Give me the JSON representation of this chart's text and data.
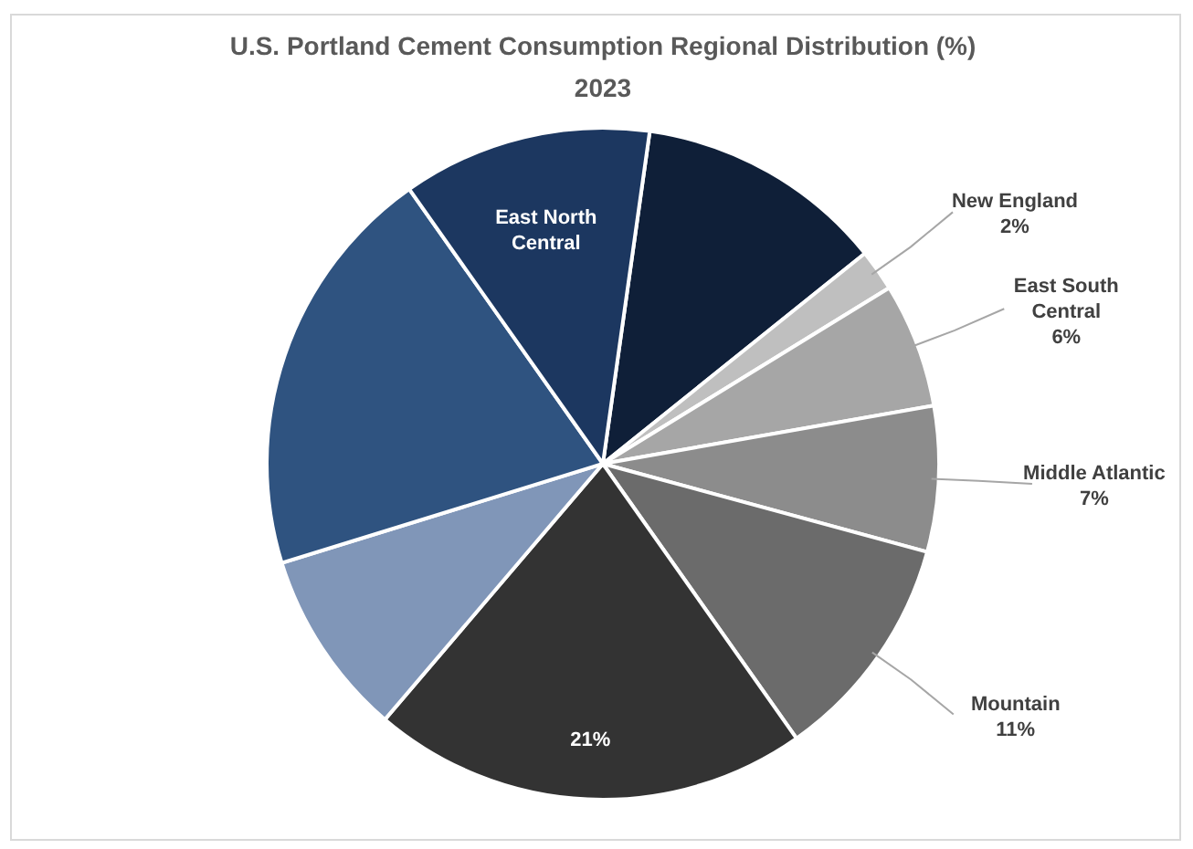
{
  "chart_data": {
    "type": "pie",
    "title": "U.S. Portland Cement Consumption Regional Distribution (%)",
    "subtitle": "2023",
    "categories": [
      null,
      "New England",
      "East South Central",
      "Middle Atlantic",
      "Mountain",
      null,
      null,
      null,
      "East North Central"
    ],
    "values": [
      12,
      2,
      6,
      7,
      11,
      21,
      9,
      20,
      12
    ],
    "value_labels": [
      null,
      "2%",
      "6%",
      "7%",
      "11%",
      "21%",
      null,
      null,
      null
    ],
    "colors": [
      "#0f1f38",
      "#bfbfbf",
      "#a6a6a6",
      "#8c8c8c",
      "#6b6b6b",
      "#333333",
      "#8096b8",
      "#2f5380",
      "#1c3760"
    ]
  }
}
